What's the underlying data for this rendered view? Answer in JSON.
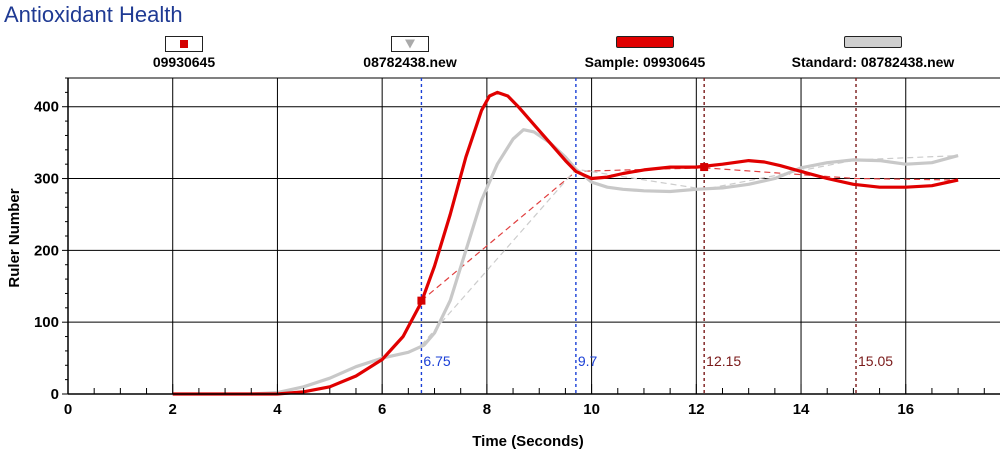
{
  "page": {
    "title": "Antioxidant Health"
  },
  "legend": [
    {
      "label": "09930645",
      "kind": "marker",
      "marker_shape": "square",
      "color": "#d40000"
    },
    {
      "label": "08782438.new",
      "kind": "marker",
      "marker_shape": "triangle-down",
      "color": "#aaaaaa"
    },
    {
      "label": "Sample: 09930645",
      "kind": "line",
      "color": "#e00000"
    },
    {
      "label": "Standard: 08782438.new",
      "kind": "line",
      "color": "#c8c8c8"
    }
  ],
  "chart_data": {
    "type": "line",
    "title": "Antioxidant Health",
    "xlabel": "Time (Seconds)",
    "ylabel": "Ruler Number",
    "xlim": [
      0,
      17.8
    ],
    "ylim": [
      0,
      440
    ],
    "xticks": [
      0,
      2,
      4,
      6,
      8,
      10,
      12,
      14,
      16
    ],
    "yticks": [
      0,
      100,
      200,
      300,
      400
    ],
    "grid": true,
    "series": [
      {
        "name": "Sample: 09930645",
        "color": "#e00000",
        "x": [
          2.0,
          3.0,
          4.0,
          4.5,
          5.0,
          5.5,
          6.0,
          6.4,
          6.75,
          7.0,
          7.3,
          7.6,
          7.9,
          8.05,
          8.2,
          8.4,
          8.6,
          8.9,
          9.2,
          9.5,
          9.7,
          10.0,
          10.3,
          10.6,
          11.0,
          11.5,
          12.0,
          12.5,
          13.0,
          13.3,
          13.6,
          14.0,
          14.5,
          15.0,
          15.5,
          16.0,
          16.5,
          17.0
        ],
        "y": [
          0,
          0,
          0,
          3,
          10,
          25,
          48,
          80,
          128,
          178,
          250,
          330,
          395,
          415,
          420,
          415,
          400,
          375,
          350,
          325,
          310,
          300,
          302,
          307,
          312,
          316,
          316,
          320,
          325,
          323,
          318,
          310,
          300,
          292,
          288,
          288,
          290,
          298
        ]
      },
      {
        "name": "Standard: 08782438.new",
        "color": "#c8c8c8",
        "x": [
          3.5,
          4.0,
          4.5,
          5.0,
          5.5,
          6.0,
          6.5,
          6.8,
          7.0,
          7.3,
          7.6,
          7.9,
          8.2,
          8.5,
          8.7,
          8.9,
          9.2,
          9.5,
          9.7,
          10.0,
          10.3,
          10.6,
          11.0,
          11.5,
          12.0,
          12.5,
          13.0,
          13.5,
          14.0,
          14.5,
          15.0,
          15.5,
          16.0,
          16.5,
          17.0
        ],
        "y": [
          0,
          2,
          10,
          22,
          38,
          50,
          58,
          68,
          85,
          130,
          200,
          270,
          320,
          355,
          368,
          365,
          350,
          330,
          313,
          295,
          288,
          285,
          283,
          282,
          285,
          287,
          292,
          300,
          315,
          322,
          326,
          325,
          320,
          322,
          332
        ]
      }
    ],
    "reference_lines": [
      {
        "x": 6.75,
        "label": "6.75",
        "color": "#1a3fd6"
      },
      {
        "x": 9.7,
        "label": "9.7",
        "color": "#1a3fd6"
      },
      {
        "x": 12.15,
        "label": "12.15",
        "color": "#7a1a1a"
      },
      {
        "x": 15.05,
        "label": "15.05",
        "color": "#7a1a1a"
      }
    ],
    "connectors": [
      {
        "series": "Sample: 09930645",
        "color": "#e04040",
        "x": [
          6.75,
          9.7,
          12.15,
          15.05,
          17.0
        ],
        "y": [
          130,
          310,
          315,
          300,
          298
        ]
      },
      {
        "series": "Standard: 08782438.new",
        "color": "#cccccc",
        "x": [
          6.75,
          9.7,
          12.15,
          15.05,
          17.0
        ],
        "y": [
          68,
          313,
          285,
          326,
          332
        ]
      }
    ],
    "markers": [
      {
        "series": "09930645",
        "shape": "square",
        "color": "#d40000",
        "x": 6.75,
        "y": 130
      },
      {
        "series": "09930645",
        "shape": "square",
        "color": "#d40000",
        "x": 12.15,
        "y": 316
      }
    ]
  }
}
